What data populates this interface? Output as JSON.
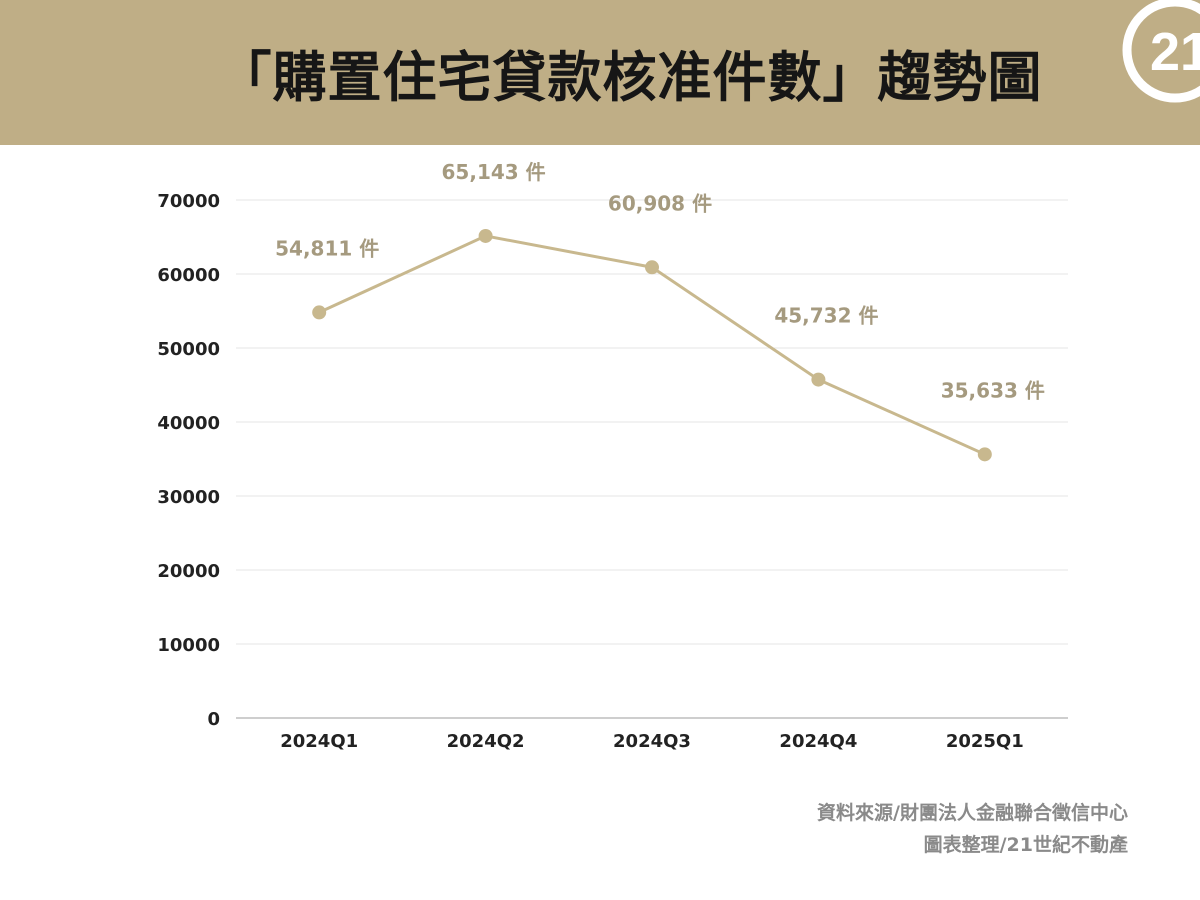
{
  "header": {
    "title": "「購置住宅貸款核准件數」趨勢圖",
    "logo_text": "21"
  },
  "colors": {
    "header_bg": "#bfae86",
    "series": "#c8b88e",
    "label": "#a59a7f",
    "axis_text": "#222222",
    "grid": "#e6e6e6"
  },
  "chart_data": {
    "type": "line",
    "categories": [
      "2024Q1",
      "2024Q2",
      "2024Q3",
      "2024Q4",
      "2025Q1"
    ],
    "values": [
      54811,
      65143,
      60908,
      45732,
      35633
    ],
    "data_labels": [
      "54,811 件",
      "65,143 件",
      "60,908 件",
      "45,732 件",
      "35,633 件"
    ],
    "yticks": [
      "0",
      "10000",
      "20000",
      "30000",
      "40000",
      "50000",
      "60000",
      "70000"
    ],
    "ylim": [
      0,
      70000
    ],
    "grid": true,
    "legend": false
  },
  "footer": {
    "source_line1": "資料來源/財團法人金融聯合徵信中心",
    "source_line2": "圖表整理/21世紀不動產"
  }
}
